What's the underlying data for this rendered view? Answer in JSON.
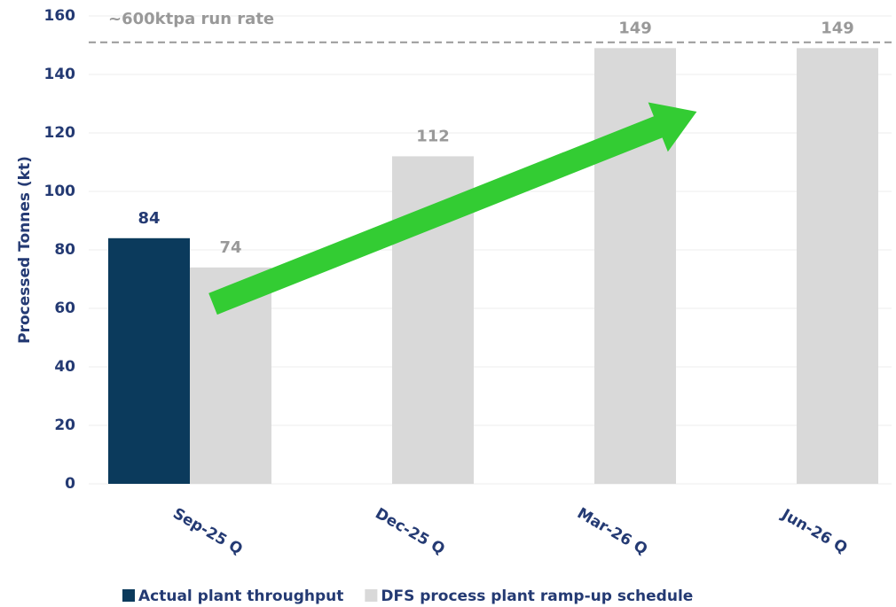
{
  "chart_data": {
    "type": "bar",
    "categories": [
      "Sep-25 Q",
      "Dec-25 Q",
      "Mar-26 Q",
      "Jun-26 Q"
    ],
    "series": [
      {
        "name": "Actual plant throughput",
        "color": "#0b3a5c",
        "label_color": "#243a73",
        "values": [
          84,
          null,
          null,
          null
        ]
      },
      {
        "name": "DFS process plant ramp-up schedule",
        "color": "#d9d9d9",
        "label_color": "#999999",
        "values": [
          74,
          112,
          149,
          149
        ]
      }
    ],
    "y_label": "Processed Tonnes (kt)",
    "ylim": [
      0,
      160
    ],
    "yticks": [
      0,
      20,
      40,
      60,
      80,
      100,
      120,
      140,
      160
    ],
    "grid": true,
    "reference_line": {
      "value": 151,
      "label": "~600ktpa run rate",
      "color": "#999999"
    },
    "legend": "bottom"
  }
}
